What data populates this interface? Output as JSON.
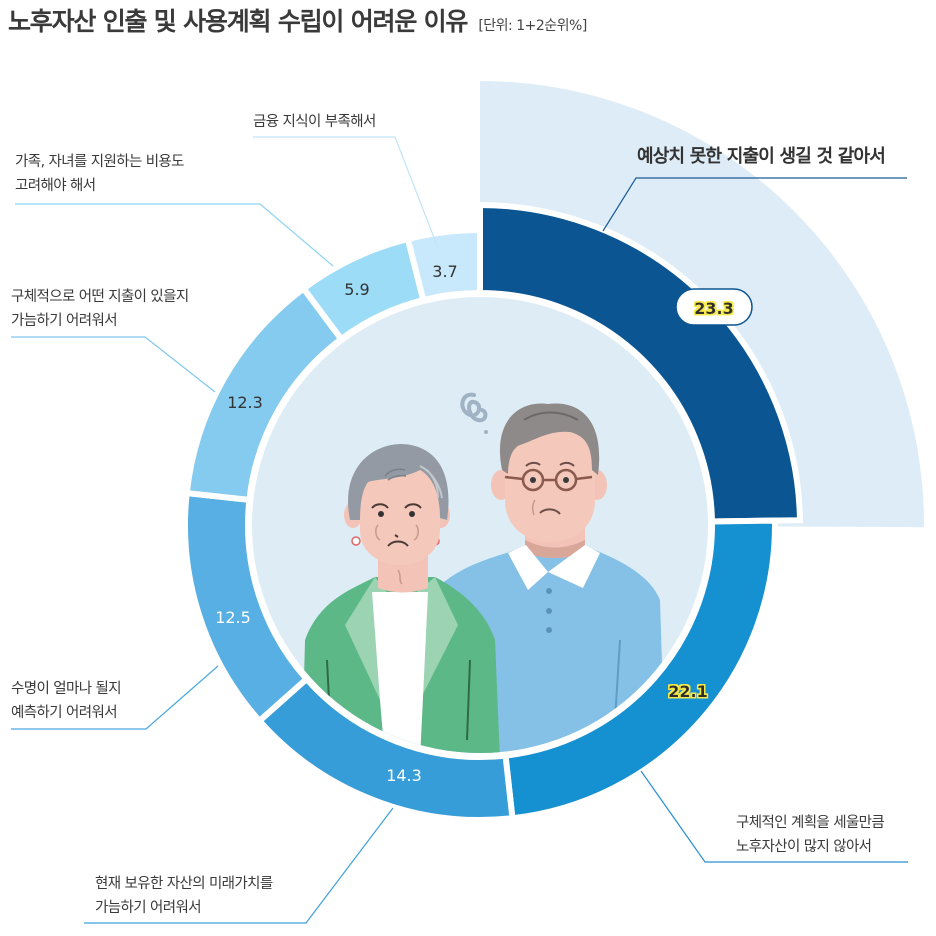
{
  "title": {
    "main": "노후자산 인출 및 사용계획 수립이 어려운 이유",
    "unit": "[단위: 1+2순위%]"
  },
  "chart_data": {
    "type": "pie",
    "subtype": "donut",
    "title": "노후자산 인출 및 사용계획 수립이 어려운 이유",
    "unit": "단위: 1+2순위%",
    "categories": [
      "예상치 못한 지출이 생길 것 같아서",
      "구체적인 계획을 세울만큼 노후자산이 많지 않아서",
      "현재 보유한 자산의 미래가치를 가늠하기 어려워서",
      "수명이 얼마나 될지 예측하기 어려워서",
      "구체적으로 어떤 지출이 있을지 가늠하기 어려워서",
      "가족, 자녀를 지원하는 비용도 고려해야 해서",
      "금융 지식이 부족해서"
    ],
    "values": [
      23.3,
      22.1,
      14.3,
      12.5,
      12.3,
      5.9,
      3.7
    ],
    "colors": [
      "#0b5592",
      "#1590d0",
      "#379dd9",
      "#58afe3",
      "#84cbef",
      "#9ddcf7",
      "#c8e9fb"
    ],
    "highlighted": [
      "예상치 못한 지출이 생길 것 같아서",
      "구체적인 계획을 세울만큼 노후자산이 많지 않아서"
    ],
    "start_angle": "12 o'clock, clockwise",
    "legend": "none (callout labels)"
  },
  "labels": {
    "seg0": {
      "line1": "예상치 못한 지출이 생길 것 같아서",
      "value": "23.3"
    },
    "seg1": {
      "line1": "구체적인 계획을 세울만큼",
      "line2": "노후자산이 많지 않아서",
      "value": "22.1"
    },
    "seg2": {
      "line1": "현재 보유한 자산의 미래가치를",
      "line2": "가늠하기 어려워서",
      "value": "14.3"
    },
    "seg3": {
      "line1": "수명이 얼마나 될지",
      "line2": "예측하기 어려워서",
      "value": "12.5"
    },
    "seg4": {
      "line1": "구체적으로 어떤 지출이 있을지",
      "line2": "가늠하기 어려워서",
      "value": "12.3"
    },
    "seg5": {
      "line1": "가족, 자녀를 지원하는 비용도",
      "line2": "고려해야 해서",
      "value": "5.9"
    },
    "seg6": {
      "line1": "금융 지식이 부족해서",
      "value": "3.7"
    }
  },
  "colors": {
    "fan_bg": "#ddecf6",
    "inner_bg": "#ddecf5",
    "highlight_glow": "#f7e94a",
    "pill_border": "#0b5592"
  }
}
